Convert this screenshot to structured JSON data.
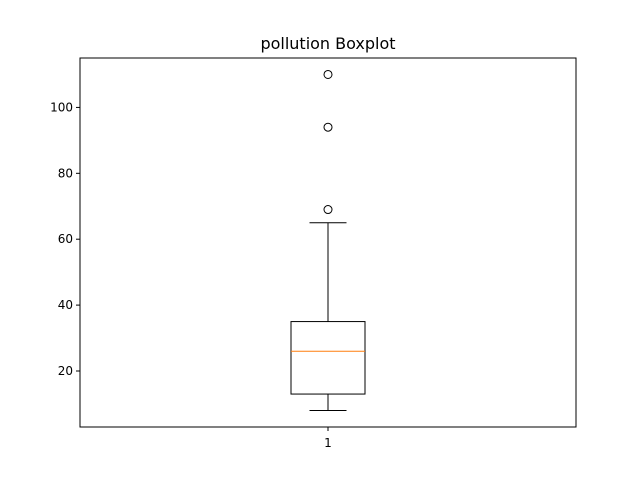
{
  "chart_data": {
    "type": "boxplot",
    "title": "pollution Boxplot",
    "xlabel": "",
    "ylabel": "",
    "categories": [
      "1"
    ],
    "ylim": [
      3,
      115
    ],
    "yticks": [
      20,
      40,
      60,
      80,
      100
    ],
    "grid": false,
    "series": [
      {
        "whisker_low": 8,
        "q1": 13,
        "median": 26,
        "q3": 35,
        "whisker_high": 65,
        "outliers": [
          69,
          94,
          110
        ]
      }
    ],
    "colors": {
      "box": "#000000",
      "median": "#ff7f0e",
      "whisker": "#000000",
      "outlier": "#000000"
    }
  }
}
